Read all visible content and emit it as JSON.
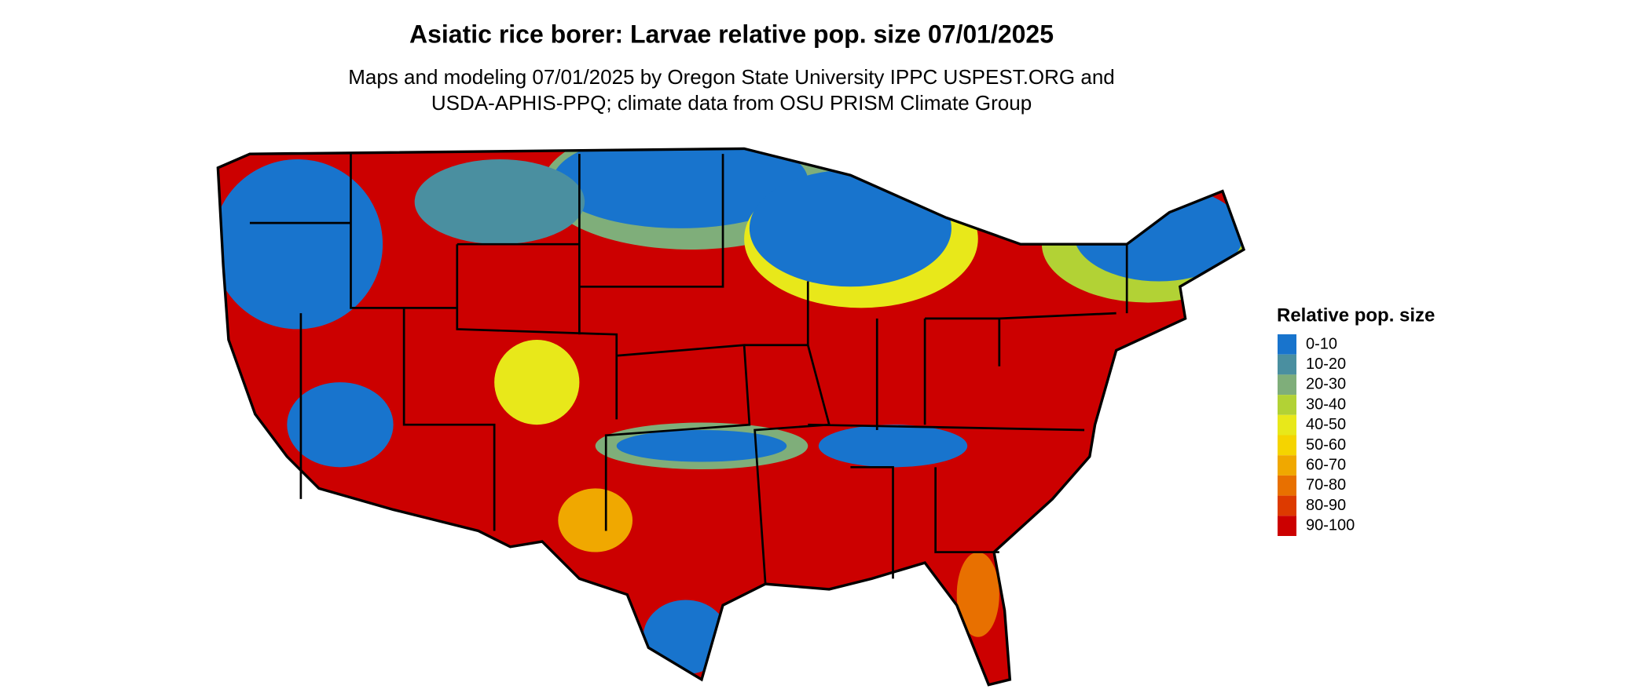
{
  "title": "Asiatic rice borer: Larvae relative pop. size 07/01/2025",
  "subtitle_lines": [
    "Maps and modeling 07/01/2025 by Oregon State University IPPC USPEST.ORG and",
    "USDA-APHIS-PPQ; climate data from OSU PRISM Climate Group"
  ],
  "legend": {
    "title": "Relative pop. size",
    "items": [
      {
        "label": "0-10",
        "color": "#1874cd"
      },
      {
        "label": "10-20",
        "color": "#4a8fa0"
      },
      {
        "label": "20-30",
        "color": "#7fae7a"
      },
      {
        "label": "30-40",
        "color": "#b2d235"
      },
      {
        "label": "40-50",
        "color": "#e8e81a"
      },
      {
        "label": "50-60",
        "color": "#f5d400"
      },
      {
        "label": "60-70",
        "color": "#f0a800"
      },
      {
        "label": "70-80",
        "color": "#e87000"
      },
      {
        "label": "80-90",
        "color": "#dd3a00"
      },
      {
        "label": "90-100",
        "color": "#cc0000"
      }
    ]
  }
}
